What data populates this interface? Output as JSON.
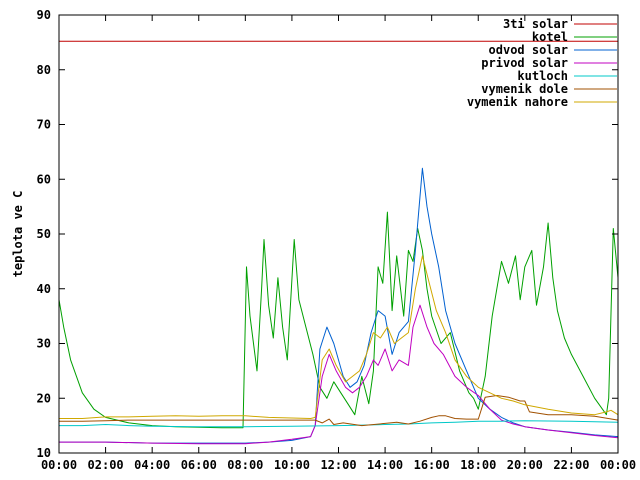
{
  "chart_data": {
    "type": "line",
    "title": "",
    "xlabel": "",
    "ylabel": "teplota ve C",
    "ylim": [
      10,
      90
    ],
    "xlim": [
      "00:00",
      "24:00"
    ],
    "x_ticks": [
      "00:00",
      "02:00",
      "04:00",
      "06:00",
      "08:00",
      "10:00",
      "12:00",
      "14:00",
      "16:00",
      "18:00",
      "20:00",
      "22:00",
      "00:00"
    ],
    "y_ticks": [
      "10",
      "20",
      "30",
      "40",
      "50",
      "60",
      "70",
      "80",
      "90"
    ],
    "grid": false,
    "legend_position": "top-right",
    "series": [
      {
        "name": "3ti solar",
        "color": "#c00000",
        "points": [
          [
            0,
            85.2
          ],
          [
            24,
            85.2
          ]
        ]
      },
      {
        "name": "kotel",
        "color": "#00a000",
        "points": [
          [
            0,
            38
          ],
          [
            0.2,
            33
          ],
          [
            0.5,
            27
          ],
          [
            1,
            21
          ],
          [
            1.5,
            18
          ],
          [
            2,
            16.5
          ],
          [
            3,
            15.5
          ],
          [
            4,
            15
          ],
          [
            5,
            14.8
          ],
          [
            6,
            14.7
          ],
          [
            7,
            14.6
          ],
          [
            7.9,
            14.6
          ],
          [
            8.05,
            44
          ],
          [
            8.2,
            35
          ],
          [
            8.5,
            25
          ],
          [
            8.7,
            40
          ],
          [
            8.8,
            49
          ],
          [
            9,
            37
          ],
          [
            9.2,
            31
          ],
          [
            9.4,
            42
          ],
          [
            9.6,
            33
          ],
          [
            9.8,
            27
          ],
          [
            10.1,
            49
          ],
          [
            10.3,
            38
          ],
          [
            10.6,
            33
          ],
          [
            10.9,
            28
          ],
          [
            11.2,
            22
          ],
          [
            11.5,
            20
          ],
          [
            11.8,
            23
          ],
          [
            12.1,
            21
          ],
          [
            12.4,
            19
          ],
          [
            12.7,
            17
          ],
          [
            13,
            24
          ],
          [
            13.3,
            19
          ],
          [
            13.5,
            25
          ],
          [
            13.7,
            44
          ],
          [
            13.9,
            41
          ],
          [
            14.1,
            54
          ],
          [
            14.3,
            36
          ],
          [
            14.5,
            46
          ],
          [
            14.8,
            35
          ],
          [
            15,
            47
          ],
          [
            15.2,
            45
          ],
          [
            15.4,
            51
          ],
          [
            15.6,
            47
          ],
          [
            15.8,
            40
          ],
          [
            16,
            35
          ],
          [
            16.4,
            30
          ],
          [
            16.8,
            32
          ],
          [
            17.2,
            25
          ],
          [
            17.6,
            21
          ],
          [
            17.8,
            20
          ],
          [
            18,
            18
          ],
          [
            18.3,
            24
          ],
          [
            18.6,
            35
          ],
          [
            19,
            45
          ],
          [
            19.3,
            41
          ],
          [
            19.6,
            46
          ],
          [
            19.8,
            38
          ],
          [
            20,
            44
          ],
          [
            20.3,
            47
          ],
          [
            20.5,
            37
          ],
          [
            20.8,
            44
          ],
          [
            21,
            52
          ],
          [
            21.2,
            42
          ],
          [
            21.4,
            36
          ],
          [
            21.7,
            31
          ],
          [
            22,
            28
          ],
          [
            22.5,
            24
          ],
          [
            23,
            20
          ],
          [
            23.5,
            17
          ],
          [
            23.6,
            20
          ],
          [
            23.8,
            51
          ],
          [
            24,
            42
          ]
        ]
      },
      {
        "name": "odvod solar",
        "color": "#0060d0",
        "points": [
          [
            0,
            12
          ],
          [
            2,
            12
          ],
          [
            4,
            11.8
          ],
          [
            6,
            11.8
          ],
          [
            8,
            11.8
          ],
          [
            9,
            12
          ],
          [
            10,
            12.3
          ],
          [
            10.8,
            13
          ],
          [
            11,
            15
          ],
          [
            11.2,
            29
          ],
          [
            11.5,
            33
          ],
          [
            11.8,
            30
          ],
          [
            12.2,
            24
          ],
          [
            12.5,
            22
          ],
          [
            12.8,
            23
          ],
          [
            13.1,
            26
          ],
          [
            13.4,
            32
          ],
          [
            13.7,
            36
          ],
          [
            14,
            35
          ],
          [
            14.3,
            28
          ],
          [
            14.6,
            32
          ],
          [
            15,
            34
          ],
          [
            15.3,
            47
          ],
          [
            15.6,
            62
          ],
          [
            15.8,
            55
          ],
          [
            16,
            50
          ],
          [
            16.3,
            44
          ],
          [
            16.6,
            36
          ],
          [
            17,
            30
          ],
          [
            17.5,
            25
          ],
          [
            18,
            20
          ],
          [
            18.5,
            18
          ],
          [
            19,
            16.5
          ],
          [
            19.5,
            15.5
          ],
          [
            20,
            14.8
          ],
          [
            21,
            14.2
          ],
          [
            22,
            13.8
          ],
          [
            23,
            13.3
          ],
          [
            24,
            13
          ]
        ]
      },
      {
        "name": "privod solar",
        "color": "#c000c0",
        "points": [
          [
            0,
            12
          ],
          [
            2,
            12
          ],
          [
            4,
            11.8
          ],
          [
            6,
            11.7
          ],
          [
            8,
            11.7
          ],
          [
            9,
            12
          ],
          [
            10,
            12.5
          ],
          [
            10.8,
            13
          ],
          [
            11,
            15
          ],
          [
            11.3,
            24
          ],
          [
            11.6,
            28
          ],
          [
            11.9,
            25
          ],
          [
            12.3,
            22
          ],
          [
            12.6,
            21
          ],
          [
            12.9,
            22
          ],
          [
            13.2,
            24
          ],
          [
            13.5,
            27
          ],
          [
            13.7,
            26
          ],
          [
            14,
            29
          ],
          [
            14.3,
            25
          ],
          [
            14.6,
            27
          ],
          [
            15,
            26
          ],
          [
            15.2,
            33
          ],
          [
            15.5,
            37
          ],
          [
            15.8,
            33
          ],
          [
            16.1,
            30
          ],
          [
            16.5,
            28
          ],
          [
            17,
            24
          ],
          [
            17.5,
            22
          ],
          [
            18,
            20.5
          ],
          [
            18.5,
            18
          ],
          [
            19,
            16
          ],
          [
            19.5,
            15.3
          ],
          [
            20,
            14.8
          ],
          [
            21,
            14.2
          ],
          [
            22,
            13.7
          ],
          [
            23,
            13.2
          ],
          [
            24,
            12.8
          ]
        ]
      },
      {
        "name": "kutloch",
        "color": "#00c8c8",
        "points": [
          [
            0,
            15
          ],
          [
            1,
            15
          ],
          [
            2,
            15.2
          ],
          [
            3,
            15
          ],
          [
            4,
            14.9
          ],
          [
            6,
            14.8
          ],
          [
            8,
            14.8
          ],
          [
            10,
            14.9
          ],
          [
            12,
            15
          ],
          [
            13,
            15.1
          ],
          [
            14,
            15.2
          ],
          [
            15,
            15.3
          ],
          [
            16,
            15.5
          ],
          [
            17,
            15.6
          ],
          [
            18,
            15.8
          ],
          [
            19,
            15.8
          ],
          [
            20,
            15.9
          ],
          [
            22,
            15.8
          ],
          [
            23,
            15.7
          ],
          [
            24,
            15.6
          ]
        ]
      },
      {
        "name": "vymenik dole",
        "color": "#a05000",
        "points": [
          [
            0,
            15.8
          ],
          [
            1,
            15.8
          ],
          [
            2,
            15.9
          ],
          [
            3,
            16
          ],
          [
            4,
            16
          ],
          [
            6,
            16
          ],
          [
            8,
            16
          ],
          [
            9,
            16
          ],
          [
            10,
            16
          ],
          [
            11,
            16
          ],
          [
            11.3,
            15.5
          ],
          [
            11.6,
            16.2
          ],
          [
            11.8,
            15.2
          ],
          [
            12.2,
            15.5
          ],
          [
            13,
            15
          ],
          [
            14,
            15.4
          ],
          [
            14.5,
            15.6
          ],
          [
            15,
            15.3
          ],
          [
            15.5,
            15.8
          ],
          [
            16,
            16.5
          ],
          [
            16.3,
            16.8
          ],
          [
            16.6,
            16.8
          ],
          [
            17,
            16.3
          ],
          [
            17.5,
            16.2
          ],
          [
            18,
            16.2
          ],
          [
            18.3,
            20.2
          ],
          [
            18.8,
            20.5
          ],
          [
            19.3,
            20.2
          ],
          [
            19.8,
            19.5
          ],
          [
            20,
            19.5
          ],
          [
            20.2,
            17.5
          ],
          [
            21,
            17
          ],
          [
            22,
            17
          ],
          [
            23,
            16.7
          ],
          [
            24,
            16
          ]
        ]
      },
      {
        "name": "vymenik nahore",
        "color": "#d0a800",
        "points": [
          [
            0,
            16.3
          ],
          [
            1,
            16.3
          ],
          [
            2,
            16.6
          ],
          [
            3,
            16.6
          ],
          [
            4,
            16.7
          ],
          [
            5,
            16.8
          ],
          [
            6,
            16.7
          ],
          [
            7,
            16.8
          ],
          [
            8,
            16.8
          ],
          [
            9,
            16.5
          ],
          [
            10,
            16.4
          ],
          [
            10.8,
            16.3
          ],
          [
            11,
            16.5
          ],
          [
            11.3,
            27
          ],
          [
            11.6,
            29
          ],
          [
            11.9,
            26
          ],
          [
            12.3,
            23
          ],
          [
            12.6,
            24
          ],
          [
            12.9,
            25
          ],
          [
            13.2,
            28
          ],
          [
            13.5,
            32
          ],
          [
            13.8,
            31
          ],
          [
            14.1,
            33
          ],
          [
            14.4,
            30
          ],
          [
            14.7,
            31
          ],
          [
            15,
            32
          ],
          [
            15.3,
            40
          ],
          [
            15.6,
            46
          ],
          [
            15.9,
            41
          ],
          [
            16.2,
            36
          ],
          [
            16.6,
            32
          ],
          [
            17,
            27
          ],
          [
            17.5,
            24
          ],
          [
            18,
            22
          ],
          [
            18.5,
            21
          ],
          [
            19,
            20
          ],
          [
            19.5,
            19.5
          ],
          [
            20,
            18.8
          ],
          [
            21,
            18
          ],
          [
            22,
            17.3
          ],
          [
            23,
            17
          ],
          [
            23.5,
            17.5
          ],
          [
            23.7,
            17.8
          ],
          [
            24,
            17
          ]
        ]
      }
    ]
  }
}
